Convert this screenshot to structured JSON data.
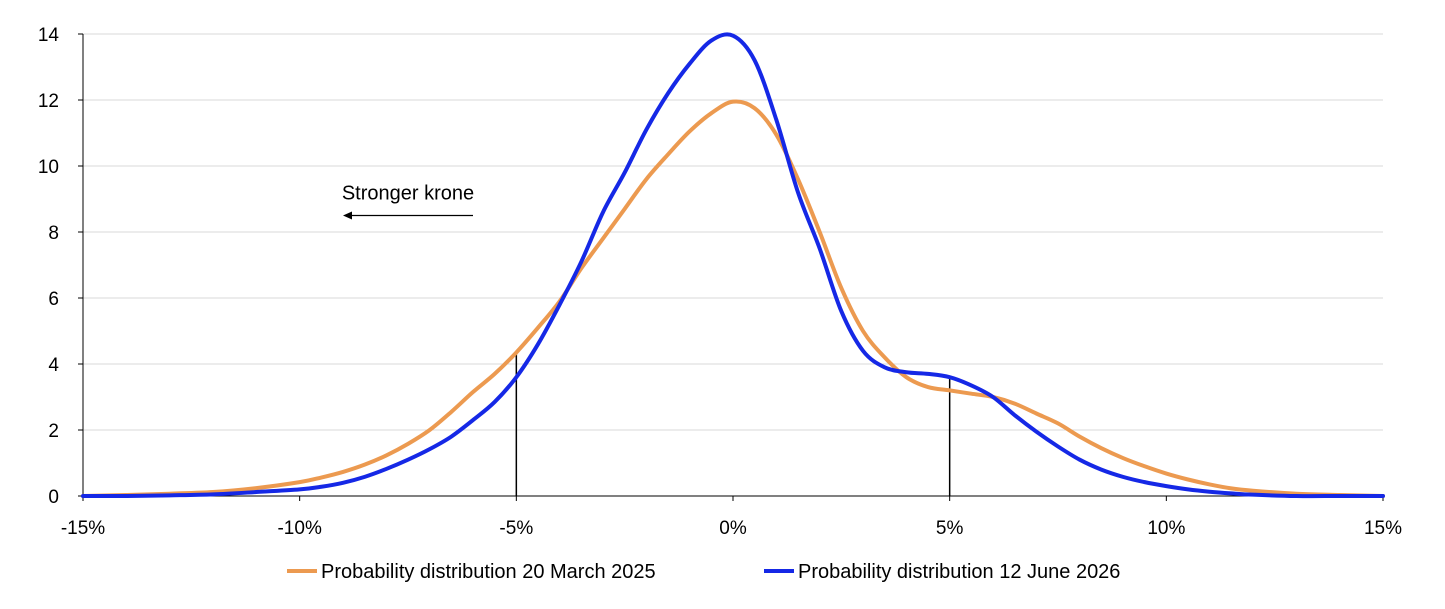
{
  "chart_data": {
    "type": "line",
    "title": "",
    "xlabel": "",
    "ylabel": "",
    "xlim": [
      -15,
      15
    ],
    "ylim": [
      0,
      14
    ],
    "grid": "horizontal",
    "legend_position": "bottom",
    "x_ticks": [
      -15,
      -10,
      -5,
      0,
      5,
      10,
      15
    ],
    "x_tick_labels": [
      "-15%",
      "-10%",
      "-5%",
      "0%",
      "5%",
      "10%",
      "15%"
    ],
    "y_ticks": [
      0,
      2,
      4,
      6,
      8,
      10,
      12,
      14
    ],
    "y_tick_labels": [
      "0",
      "2",
      "4",
      "6",
      "8",
      "10",
      "12",
      "14"
    ],
    "annotation": {
      "text": "Stronger krone",
      "arrow_from_x": -6.0,
      "arrow_to_x": -9.0,
      "y": 8.5,
      "label_y": 9.2
    },
    "reference_lines": [
      {
        "x": -5,
        "y_top": 4.3
      },
      {
        "x": 5,
        "y_top": 3.65
      }
    ],
    "series": [
      {
        "name": "Probability distribution 20 March 2025",
        "color": "#EC9A50",
        "x": [
          -15,
          -14,
          -13,
          -12,
          -11,
          -10,
          -9.5,
          -9,
          -8.5,
          -8,
          -7.5,
          -7,
          -6.5,
          -6,
          -5.5,
          -5,
          -4.5,
          -4,
          -3.5,
          -3,
          -2.5,
          -2,
          -1.5,
          -1,
          -0.5,
          0,
          0.5,
          1,
          1.5,
          2,
          2.5,
          3,
          3.5,
          4,
          4.5,
          5,
          5.5,
          6,
          6.5,
          7,
          7.5,
          8,
          8.5,
          9,
          9.5,
          10,
          10.5,
          11,
          11.5,
          12,
          13,
          14,
          15
        ],
        "values": [
          0.0,
          0.03,
          0.07,
          0.12,
          0.24,
          0.42,
          0.56,
          0.73,
          0.95,
          1.23,
          1.58,
          2.0,
          2.55,
          3.15,
          3.7,
          4.35,
          5.1,
          5.9,
          6.9,
          7.8,
          8.7,
          9.6,
          10.35,
          11.05,
          11.6,
          11.95,
          11.75,
          10.95,
          9.6,
          8.0,
          6.3,
          5.0,
          4.2,
          3.6,
          3.3,
          3.2,
          3.1,
          3.0,
          2.8,
          2.5,
          2.2,
          1.8,
          1.45,
          1.15,
          0.9,
          0.68,
          0.5,
          0.35,
          0.23,
          0.16,
          0.07,
          0.03,
          0.0
        ]
      },
      {
        "name": "Probability distribution 12 June 2026",
        "color": "#1528E6",
        "x": [
          -15,
          -14,
          -13,
          -12,
          -11,
          -10,
          -9.5,
          -9,
          -8.5,
          -8,
          -7.5,
          -7,
          -6.5,
          -6,
          -5.5,
          -5,
          -4.5,
          -4,
          -3.5,
          -3,
          -2.5,
          -2,
          -1.5,
          -1,
          -0.5,
          0,
          0.5,
          1,
          1.5,
          2,
          2.5,
          3,
          3.5,
          4,
          4.5,
          5,
          5.5,
          6,
          6.5,
          7,
          7.5,
          8,
          8.5,
          9,
          9.5,
          10,
          10.5,
          11,
          11.5,
          12,
          13,
          14,
          15
        ],
        "values": [
          0.0,
          0.0,
          0.02,
          0.05,
          0.12,
          0.2,
          0.28,
          0.4,
          0.58,
          0.82,
          1.1,
          1.42,
          1.8,
          2.3,
          2.85,
          3.6,
          4.6,
          5.8,
          7.1,
          8.6,
          9.8,
          11.1,
          12.2,
          13.1,
          13.8,
          13.95,
          13.2,
          11.4,
          9.2,
          7.5,
          5.6,
          4.4,
          3.9,
          3.75,
          3.7,
          3.6,
          3.35,
          3.0,
          2.45,
          1.95,
          1.5,
          1.1,
          0.8,
          0.58,
          0.42,
          0.3,
          0.2,
          0.13,
          0.08,
          0.04,
          0.0,
          0.0,
          0.0
        ]
      }
    ]
  }
}
